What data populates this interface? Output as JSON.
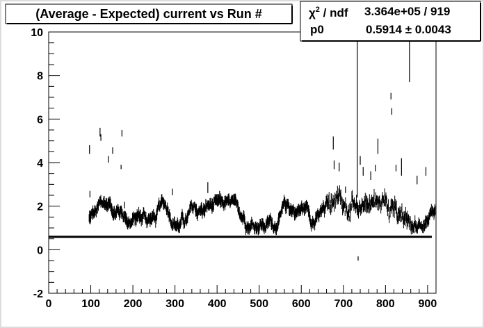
{
  "chart_data": {
    "type": "scatter",
    "title": "(Average - Expected) current vs Run #",
    "xlabel": "",
    "ylabel": "",
    "xlim": [
      0,
      920
    ],
    "ylim": [
      -2,
      10
    ],
    "x_ticks": [
      0,
      100,
      200,
      300,
      400,
      500,
      600,
      700,
      800,
      900
    ],
    "y_ticks": [
      -2,
      0,
      2,
      4,
      6,
      8,
      10
    ],
    "grid": false,
    "frame_color": "#dcdcdc",
    "fit": {
      "type": "constant",
      "value": 0.5914,
      "x_range": [
        0,
        910
      ]
    },
    "stats": {
      "chi2_label": "χ",
      "chi2_sup": "2",
      "chi2_ndf_label": " / ndf",
      "chi2_ndf_value": "3.364e+05 / 919",
      "p0_label": "p0",
      "p0_value": "0.5914 ± 0.0043"
    },
    "outliers": [
      {
        "x": 97,
        "lo": 4.4,
        "hi": 4.8
      },
      {
        "x": 98,
        "lo": 2.4,
        "hi": 2.7
      },
      {
        "x": 122,
        "lo": 5.2,
        "hi": 5.6
      },
      {
        "x": 124,
        "lo": 5.0,
        "hi": 5.3
      },
      {
        "x": 142,
        "lo": 4.0,
        "hi": 4.3
      },
      {
        "x": 152,
        "lo": 4.4,
        "hi": 4.7
      },
      {
        "x": 174,
        "lo": 5.2,
        "hi": 5.5
      },
      {
        "x": 172,
        "lo": 3.7,
        "hi": 3.9
      },
      {
        "x": 180,
        "lo": 1.9,
        "hi": 2.2
      },
      {
        "x": 294,
        "lo": 2.5,
        "hi": 2.8
      },
      {
        "x": 378,
        "lo": 2.6,
        "hi": 3.1
      },
      {
        "x": 406,
        "lo": 2.4,
        "hi": 2.7
      },
      {
        "x": 676,
        "lo": 4.6,
        "hi": 5.2
      },
      {
        "x": 678,
        "lo": 3.7,
        "hi": 4.1
      },
      {
        "x": 690,
        "lo": 3.6,
        "hi": 4.0
      },
      {
        "x": 705,
        "lo": 2.6,
        "hi": 2.9
      },
      {
        "x": 733,
        "lo": 2.4,
        "hi": 10.0
      },
      {
        "x": 735,
        "lo": -0.5,
        "hi": -0.3
      },
      {
        "x": 740,
        "lo": 3.9,
        "hi": 4.3
      },
      {
        "x": 747,
        "lo": 3.4,
        "hi": 3.8
      },
      {
        "x": 765,
        "lo": 3.2,
        "hi": 3.6
      },
      {
        "x": 776,
        "lo": 3.6,
        "hi": 3.9
      },
      {
        "x": 782,
        "lo": 4.4,
        "hi": 5.1
      },
      {
        "x": 813,
        "lo": 6.9,
        "hi": 7.2
      },
      {
        "x": 815,
        "lo": 6.2,
        "hi": 6.5
      },
      {
        "x": 825,
        "lo": 3.6,
        "hi": 3.9
      },
      {
        "x": 838,
        "lo": 3.4,
        "hi": 4.2
      },
      {
        "x": 857,
        "lo": 7.7,
        "hi": 10.0
      },
      {
        "x": 875,
        "lo": 3.0,
        "hi": 3.4
      },
      {
        "x": 896,
        "lo": 3.4,
        "hi": 3.8
      }
    ]
  }
}
